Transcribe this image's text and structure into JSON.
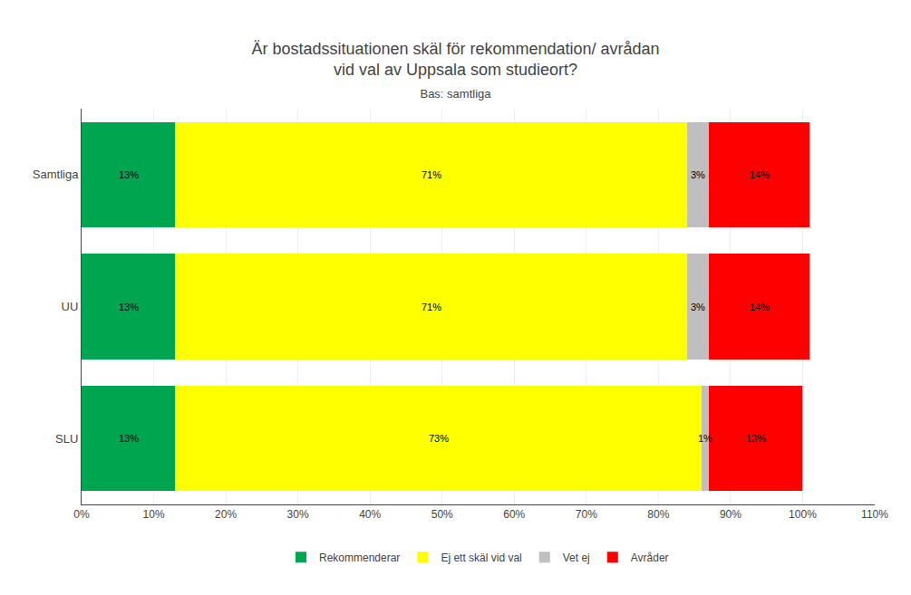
{
  "chart_data": {
    "type": "bar",
    "orientation": "horizontal",
    "stacked": true,
    "title": "Är bostadssituationen skäl för rekommendation/ avrådan\nvid val av Uppsala som studieort?",
    "subtitle": "Bas: samtliga",
    "categories": [
      "SLU",
      "UU",
      "Samtliga"
    ],
    "series": [
      {
        "name": "Rekommenderar",
        "color": "#00A550",
        "values": [
          13,
          13,
          13
        ],
        "value_labels": [
          "13%",
          "13%",
          "13%"
        ]
      },
      {
        "name": "Ej ett skäl vid val",
        "color": "#FFFF00",
        "values": [
          73,
          71,
          71
        ],
        "value_labels": [
          "73%",
          "71%",
          "71%"
        ]
      },
      {
        "name": "Vet ej",
        "color": "#BFBFBF",
        "values": [
          1,
          3,
          3
        ],
        "value_labels": [
          "1%",
          "3%",
          "3%"
        ]
      },
      {
        "name": "Avråder",
        "color": "#FF0000",
        "values": [
          13,
          14,
          14
        ],
        "value_labels": [
          "13%",
          "14%",
          "14%"
        ]
      }
    ],
    "xlim": [
      0,
      110
    ],
    "xticks": [
      {
        "value": 0,
        "label": "0%"
      },
      {
        "value": 10,
        "label": "10%"
      },
      {
        "value": 20,
        "label": "20%"
      },
      {
        "value": 30,
        "label": "30%"
      },
      {
        "value": 40,
        "label": "40%"
      },
      {
        "value": 50,
        "label": "50%"
      },
      {
        "value": 60,
        "label": "60%"
      },
      {
        "value": 70,
        "label": "70%"
      },
      {
        "value": 80,
        "label": "80%"
      },
      {
        "value": 90,
        "label": "90%"
      },
      {
        "value": 100,
        "label": "100%"
      },
      {
        "value": 110,
        "label": "110%"
      }
    ],
    "grid": true,
    "legend": "bottom",
    "data_labels": true
  }
}
